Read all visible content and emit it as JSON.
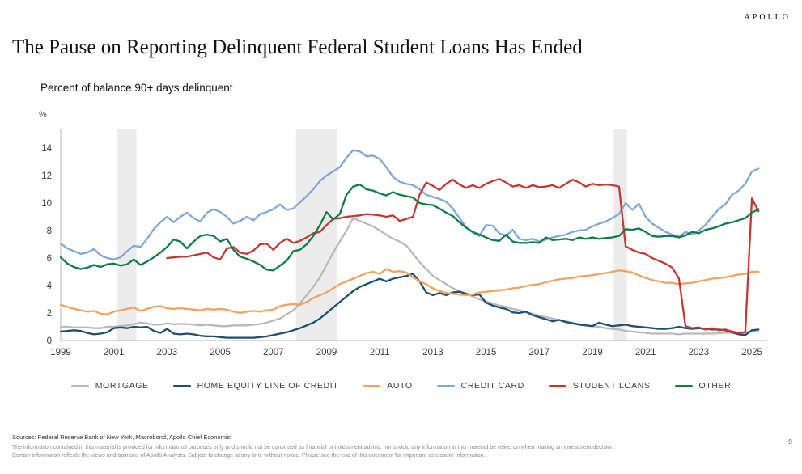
{
  "header": {
    "logo": "APOLLO",
    "title": "The Pause on Reporting Delinquent Federal Student Loans Has Ended"
  },
  "chart": {
    "subtitle": "Percent of balance 90+ days delinquent",
    "unit": "%"
  },
  "chart_data": {
    "type": "line",
    "title": "Percent of balance 90+ days delinquent",
    "ylabel": "%",
    "xlabel": "",
    "grid": false,
    "legend_position": "bottom",
    "x_start": 1999.0,
    "x_step": 0.25,
    "x_end": 2025.25,
    "xlim": [
      1998.8,
      2025.6
    ],
    "ylim": [
      0,
      15.3
    ],
    "y_ticks": [
      0,
      2,
      4,
      6,
      8,
      10,
      12,
      14
    ],
    "x_tick_years": [
      1999,
      2001,
      2003,
      2005,
      2007,
      2009,
      2011,
      2013,
      2015,
      2017,
      2019,
      2021,
      2023,
      2025
    ],
    "recession_bands": [
      [
        2001.1,
        2001.85
      ],
      [
        2007.85,
        2009.4
      ],
      [
        2019.8,
        2020.3
      ]
    ],
    "axis_color": "#c4c4c4",
    "band_color": "#ececec",
    "series": [
      {
        "name": "MORTGAGE",
        "color": "#b9b9b9",
        "values": [
          1.0,
          1.0,
          0.95,
          0.95,
          0.95,
          0.9,
          0.9,
          1.0,
          1.0,
          1.05,
          1.1,
          1.2,
          1.3,
          1.25,
          1.15,
          1.15,
          1.25,
          1.2,
          1.2,
          1.2,
          1.15,
          1.1,
          1.15,
          1.1,
          1.05,
          1.05,
          1.1,
          1.1,
          1.1,
          1.15,
          1.2,
          1.3,
          1.45,
          1.6,
          1.9,
          2.2,
          2.7,
          3.3,
          3.9,
          4.6,
          5.5,
          6.4,
          7.2,
          8.0,
          8.9,
          8.7,
          8.5,
          8.3,
          8.0,
          7.7,
          7.4,
          7.2,
          6.9,
          6.3,
          5.7,
          5.2,
          4.7,
          4.4,
          4.1,
          3.8,
          3.6,
          3.4,
          3.2,
          3.0,
          2.85,
          2.7,
          2.55,
          2.45,
          2.3,
          2.2,
          2.05,
          1.95,
          1.8,
          1.7,
          1.6,
          1.5,
          1.4,
          1.3,
          1.2,
          1.1,
          1.05,
          1.0,
          0.9,
          0.85,
          0.8,
          0.7,
          0.65,
          0.6,
          0.55,
          0.5,
          0.5,
          0.5,
          0.5,
          0.45,
          0.5,
          0.5,
          0.5,
          0.5,
          0.5,
          0.55,
          0.55,
          0.55,
          0.6,
          0.6,
          0.65,
          0.65
        ]
      },
      {
        "name": "HOME EQUITY LINE OF CREDIT",
        "color": "#1f4e6e",
        "values": [
          0.65,
          0.7,
          0.75,
          0.7,
          0.55,
          0.45,
          0.5,
          0.6,
          0.9,
          0.95,
          0.9,
          1.0,
          0.95,
          1.0,
          0.7,
          0.55,
          0.85,
          0.5,
          0.45,
          0.5,
          0.45,
          0.35,
          0.3,
          0.3,
          0.25,
          0.2,
          0.2,
          0.2,
          0.2,
          0.2,
          0.25,
          0.3,
          0.4,
          0.5,
          0.6,
          0.75,
          0.9,
          1.1,
          1.3,
          1.6,
          2.0,
          2.4,
          2.8,
          3.2,
          3.6,
          3.9,
          4.1,
          4.3,
          4.5,
          4.3,
          4.5,
          4.6,
          4.7,
          4.85,
          4.3,
          3.5,
          3.3,
          3.45,
          3.3,
          3.5,
          3.55,
          3.4,
          3.3,
          3.35,
          2.75,
          2.55,
          2.4,
          2.3,
          2.05,
          2.0,
          2.1,
          1.85,
          1.7,
          1.55,
          1.4,
          1.5,
          1.35,
          1.25,
          1.15,
          1.1,
          1.05,
          1.3,
          1.15,
          1.05,
          1.1,
          1.15,
          1.05,
          1.0,
          0.95,
          0.9,
          0.85,
          0.85,
          0.9,
          1.0,
          0.9,
          0.85,
          0.9,
          0.85,
          0.8,
          0.8,
          0.75,
          0.6,
          0.45,
          0.4,
          0.75,
          0.8
        ]
      },
      {
        "name": "AUTO",
        "color": "#efa35f",
        "values": [
          2.6,
          2.45,
          2.3,
          2.2,
          2.1,
          2.15,
          1.95,
          1.9,
          2.1,
          2.2,
          2.3,
          2.4,
          2.15,
          2.3,
          2.45,
          2.5,
          2.35,
          2.3,
          2.35,
          2.3,
          2.25,
          2.2,
          2.3,
          2.25,
          2.3,
          2.25,
          2.1,
          2.0,
          2.1,
          2.15,
          2.1,
          2.2,
          2.25,
          2.5,
          2.6,
          2.65,
          2.6,
          2.8,
          3.1,
          3.3,
          3.5,
          3.8,
          4.1,
          4.3,
          4.5,
          4.7,
          4.9,
          5.0,
          4.85,
          5.2,
          5.0,
          5.05,
          4.95,
          4.6,
          4.3,
          4.1,
          3.8,
          3.6,
          3.45,
          3.4,
          3.35,
          3.3,
          3.35,
          3.5,
          3.55,
          3.6,
          3.65,
          3.7,
          3.8,
          3.85,
          3.95,
          4.05,
          4.1,
          4.25,
          4.35,
          4.45,
          4.5,
          4.55,
          4.65,
          4.7,
          4.75,
          4.85,
          4.9,
          5.0,
          5.1,
          5.05,
          4.95,
          4.75,
          4.55,
          4.4,
          4.3,
          4.2,
          4.2,
          4.1,
          4.15,
          4.2,
          4.3,
          4.4,
          4.5,
          4.55,
          4.6,
          4.7,
          4.8,
          4.85,
          5.0,
          5.0
        ]
      },
      {
        "name": "CREDIT CARD",
        "color": "#7ea8d8",
        "values": [
          7.05,
          6.7,
          6.5,
          6.3,
          6.4,
          6.65,
          6.2,
          6.0,
          5.9,
          6.05,
          6.5,
          6.9,
          6.8,
          7.4,
          8.1,
          8.6,
          9.0,
          8.6,
          9.0,
          9.3,
          8.9,
          8.65,
          9.3,
          9.55,
          9.35,
          9.0,
          8.5,
          8.7,
          9.0,
          8.75,
          9.2,
          9.35,
          9.55,
          9.9,
          9.5,
          9.6,
          10.05,
          10.5,
          11.0,
          11.6,
          12.0,
          12.3,
          12.6,
          13.3,
          13.85,
          13.75,
          13.4,
          13.45,
          13.2,
          12.6,
          11.9,
          11.55,
          11.4,
          11.3,
          11.0,
          10.6,
          10.45,
          10.3,
          10.1,
          9.6,
          8.9,
          8.25,
          7.85,
          7.6,
          8.4,
          8.35,
          7.8,
          7.6,
          8.05,
          7.4,
          7.3,
          7.4,
          7.2,
          7.35,
          7.5,
          7.6,
          7.7,
          7.9,
          8.0,
          8.05,
          8.3,
          8.5,
          8.65,
          8.9,
          9.2,
          10.0,
          9.5,
          9.95,
          9.0,
          8.5,
          8.2,
          7.9,
          7.7,
          7.55,
          7.9,
          7.7,
          8.0,
          8.4,
          9.0,
          9.55,
          9.9,
          10.6,
          10.9,
          11.4,
          12.3,
          12.5
        ]
      },
      {
        "name": "STUDENT LOANS",
        "color": "#c03a32",
        "values": [
          null,
          null,
          null,
          null,
          null,
          null,
          null,
          null,
          null,
          null,
          null,
          null,
          null,
          null,
          null,
          null,
          6.0,
          6.05,
          6.1,
          6.1,
          6.2,
          6.3,
          6.4,
          6.05,
          5.9,
          6.7,
          6.8,
          6.4,
          6.3,
          6.55,
          7.0,
          7.05,
          6.6,
          7.1,
          7.4,
          7.1,
          7.25,
          7.5,
          7.8,
          7.9,
          8.4,
          8.85,
          8.9,
          9.0,
          9.05,
          9.1,
          9.2,
          9.15,
          9.1,
          9.0,
          9.1,
          8.7,
          8.85,
          9.0,
          10.6,
          11.5,
          11.25,
          10.95,
          11.4,
          11.7,
          11.35,
          11.1,
          11.3,
          11.1,
          11.4,
          11.6,
          11.75,
          11.5,
          11.2,
          11.3,
          11.1,
          11.3,
          11.15,
          11.2,
          11.3,
          11.1,
          11.4,
          11.7,
          11.5,
          11.2,
          11.4,
          11.3,
          11.35,
          11.3,
          11.2,
          6.85,
          6.6,
          6.4,
          6.3,
          6.0,
          5.8,
          5.6,
          5.3,
          4.55,
          1.05,
          0.9,
          0.95,
          0.8,
          0.9,
          0.75,
          0.8,
          0.65,
          0.55,
          0.6,
          10.35,
          9.4
        ]
      },
      {
        "name": "OTHER",
        "color": "#107c4b",
        "values": [
          6.05,
          5.6,
          5.35,
          5.2,
          5.3,
          5.5,
          5.35,
          5.55,
          5.6,
          5.45,
          5.55,
          5.9,
          5.5,
          5.75,
          6.05,
          6.4,
          6.8,
          7.35,
          7.2,
          6.7,
          7.2,
          7.6,
          7.7,
          7.6,
          7.2,
          7.4,
          6.6,
          6.1,
          5.95,
          5.75,
          5.5,
          5.15,
          5.1,
          5.45,
          5.8,
          6.5,
          6.6,
          7.0,
          7.6,
          8.4,
          9.35,
          8.8,
          9.2,
          10.6,
          11.2,
          11.35,
          11.0,
          10.9,
          10.7,
          10.55,
          10.8,
          10.6,
          10.5,
          10.4,
          10.0,
          9.9,
          9.85,
          9.6,
          9.3,
          9.05,
          8.6,
          8.2,
          7.9,
          7.7,
          7.5,
          7.3,
          7.25,
          7.7,
          7.2,
          7.1,
          7.1,
          7.15,
          7.1,
          7.5,
          7.3,
          7.35,
          7.4,
          7.3,
          7.5,
          7.4,
          7.5,
          7.4,
          7.45,
          7.5,
          7.6,
          8.1,
          8.05,
          8.15,
          7.9,
          7.6,
          7.55,
          7.6,
          7.6,
          7.5,
          7.65,
          7.9,
          7.8,
          8.05,
          8.15,
          8.3,
          8.5,
          8.6,
          8.75,
          8.9,
          9.3,
          9.55
        ]
      }
    ]
  },
  "footer": {
    "sources": "Sources: Federal Reserve Bank of New York, Macrobond, Apollo Chief Economist",
    "disclaimer": "The information contained in this material is provided for informational purposes only and should not be construed as financial or investment advice, nor should any information in this material be relied on when making an investment decision. Certain information reflects the views and opinions of Apollo Analysts. Subject to change at any time without notice. Please see the end of this document for important disclosure information.",
    "page_number": "9"
  }
}
